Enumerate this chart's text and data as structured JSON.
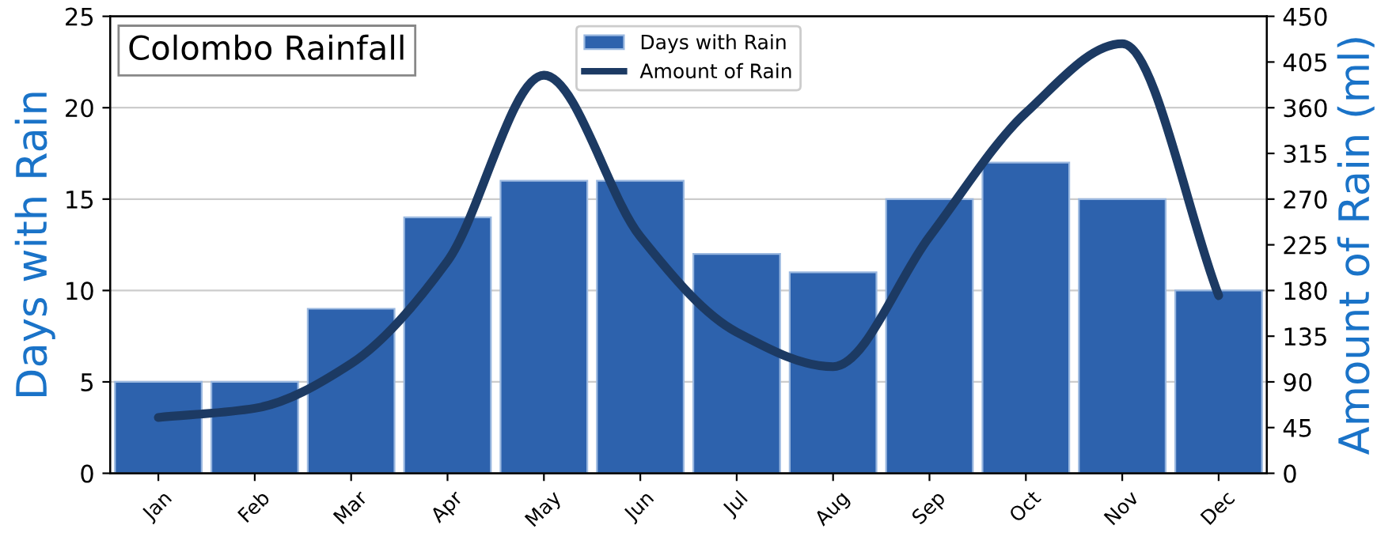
{
  "chart_data": {
    "type": "bar",
    "title": "Colombo Rainfall",
    "categories": [
      "Jan",
      "Feb",
      "Mar",
      "Apr",
      "May",
      "Jun",
      "Jul",
      "Aug",
      "Sep",
      "Oct",
      "Nov",
      "Dec"
    ],
    "series": [
      {
        "name": "Days with Rain",
        "color": "#2d62ad",
        "values": [
          5,
          5,
          9,
          14,
          16,
          16,
          12,
          11,
          15,
          17,
          15,
          10
        ]
      },
      {
        "name": "Amount of Rain",
        "type": "line",
        "axis": "y2",
        "color": "#1c3a63",
        "values": [
          55,
          64,
          108,
          209,
          392,
          233,
          139,
          105,
          233,
          355,
          423,
          175
        ]
      }
    ],
    "ylabel": "Days with Rain",
    "y2label": "Amount of Rain (ml)",
    "ylim": [
      0,
      25
    ],
    "yticks": [
      0,
      5,
      10,
      15,
      20,
      25
    ],
    "y2lim": [
      0,
      450
    ],
    "y2ticks": [
      0,
      45,
      90,
      135,
      180,
      225,
      270,
      315,
      360,
      405,
      450
    ],
    "grid": "y",
    "legend": "top",
    "line_style": "solid",
    "marker": "none"
  }
}
